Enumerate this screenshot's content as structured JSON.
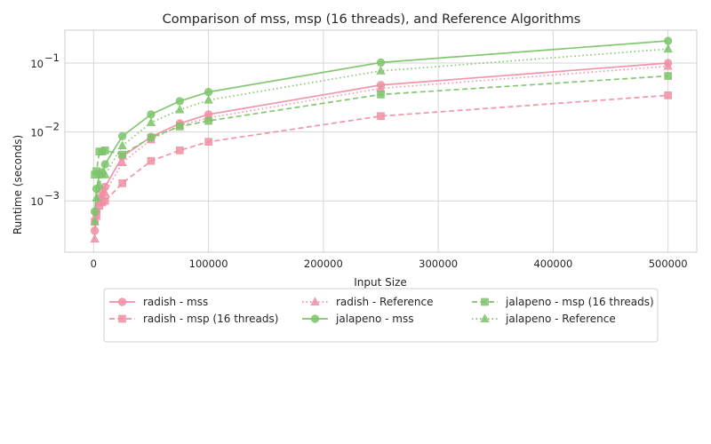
{
  "chart_data": {
    "type": "line",
    "title": "Comparison of mss, msp (16 threads), and Reference Algorithms",
    "xlabel": "Input Size",
    "ylabel": "Runtime (seconds)",
    "xlim": [
      -25000,
      525000
    ],
    "ylim": [
      0.00018,
      0.3
    ],
    "yscale": "log",
    "grid": true,
    "legend_position": "bottom-center",
    "xticks": [
      0,
      100000,
      200000,
      300000,
      400000,
      500000
    ],
    "xtick_labels": [
      "0",
      "100000",
      "200000",
      "300000",
      "400000",
      "500000"
    ],
    "yticks": [
      0.001,
      0.01,
      0.1
    ],
    "ytick_labels": [
      "10",
      "10",
      "10"
    ],
    "ytick_exponents": [
      "−3",
      "−2",
      "−1"
    ],
    "x": [
      1000,
      2500,
      5000,
      7500,
      10000,
      25000,
      50000,
      75000,
      100000,
      250000,
      500000
    ],
    "series": [
      {
        "name": "radish - mss",
        "color": "#f08fa5",
        "dash": "solid",
        "marker": "circle",
        "values": [
          0.00037,
          0.0007,
          0.0011,
          0.0014,
          0.0016,
          0.0044,
          0.0085,
          0.0133,
          0.018,
          0.048,
          0.1
        ]
      },
      {
        "name": "radish - msp (16 threads)",
        "color": "#f08fa5",
        "dash": "dashed",
        "marker": "square",
        "values": [
          0.0005,
          0.00065,
          0.00085,
          0.00095,
          0.001,
          0.0018,
          0.0038,
          0.0054,
          0.0072,
          0.017,
          0.034
        ]
      },
      {
        "name": "radish - Reference",
        "color": "#f08fa5",
        "dash": "dotted",
        "marker": "triangle",
        "values": [
          0.00028,
          0.0006,
          0.00095,
          0.0012,
          0.0013,
          0.0036,
          0.0077,
          0.0125,
          0.016,
          0.043,
          0.09
        ]
      },
      {
        "name": "jalapeno - mss",
        "color": "#7dc46a",
        "dash": "solid",
        "marker": "circle",
        "values": [
          0.0007,
          0.0015,
          0.0024,
          0.0026,
          0.0034,
          0.0087,
          0.018,
          0.028,
          0.038,
          0.102,
          0.21
        ]
      },
      {
        "name": "jalapeno - msp (16 threads)",
        "color": "#7dc46a",
        "dash": "dashed",
        "marker": "square",
        "values": [
          0.0024,
          0.0027,
          0.0052,
          0.0052,
          0.0054,
          0.0047,
          0.0083,
          0.012,
          0.0145,
          0.035,
          0.065
        ]
      },
      {
        "name": "jalapeno - Reference",
        "color": "#7dc46a",
        "dash": "dotted",
        "marker": "triangle",
        "values": [
          0.0005,
          0.0011,
          0.0017,
          0.0024,
          0.0024,
          0.0063,
          0.0137,
          0.021,
          0.029,
          0.077,
          0.16
        ]
      }
    ]
  }
}
